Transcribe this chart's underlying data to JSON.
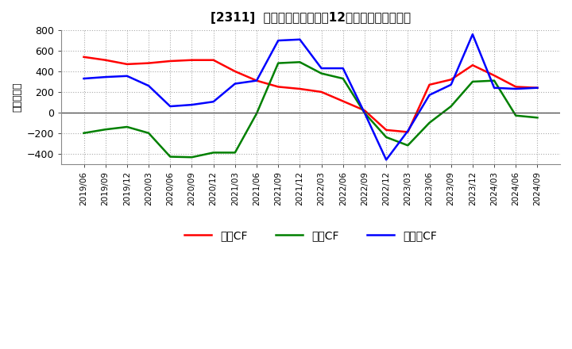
{
  "title": "[2311]  キャッシュフローの12か月移動合計の推移",
  "ylabel": "（百万円）",
  "background_color": "#ffffff",
  "plot_bg_color": "#ffffff",
  "grid_color": "#aaaaaa",
  "dates": [
    "2019/06",
    "2019/09",
    "2019/12",
    "2020/03",
    "2020/06",
    "2020/09",
    "2020/12",
    "2021/03",
    "2021/06",
    "2021/09",
    "2021/12",
    "2022/03",
    "2022/06",
    "2022/09",
    "2022/12",
    "2023/03",
    "2023/06",
    "2023/09",
    "2023/12",
    "2024/03",
    "2024/06",
    "2024/09"
  ],
  "eigyo_cf": [
    540,
    510,
    470,
    480,
    500,
    510,
    510,
    400,
    310,
    250,
    230,
    200,
    110,
    20,
    -170,
    -190,
    270,
    320,
    460,
    360,
    250,
    240
  ],
  "toshi_cf": [
    -200,
    -165,
    -140,
    -200,
    -430,
    -435,
    -390,
    -390,
    -10,
    480,
    490,
    380,
    330,
    -5,
    -240,
    -320,
    -100,
    60,
    300,
    310,
    -30,
    -50
  ],
  "free_cf": [
    330,
    345,
    355,
    260,
    60,
    75,
    105,
    280,
    310,
    700,
    710,
    430,
    430,
    -5,
    -460,
    -180,
    170,
    270,
    760,
    240,
    230,
    240
  ],
  "eigyo_color": "#ff0000",
  "toshi_color": "#008000",
  "free_color": "#0000ff",
  "ylim": [
    -500,
    800
  ],
  "yticks": [
    -400,
    -200,
    0,
    200,
    400,
    600,
    800
  ],
  "legend_labels": [
    "営業CF",
    "投資CF",
    "フリーCF"
  ]
}
